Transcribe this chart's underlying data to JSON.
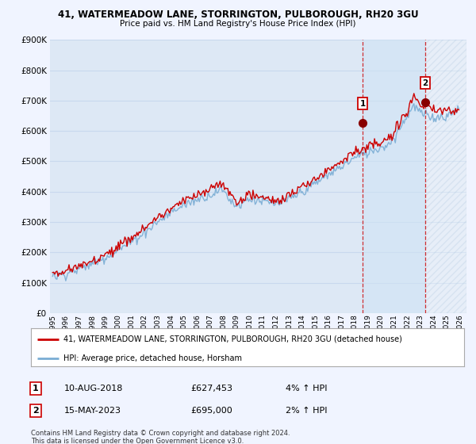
{
  "title1": "41, WATERMEADOW LANE, STORRINGTON, PULBOROUGH, RH20 3GU",
  "title2": "Price paid vs. HM Land Registry's House Price Index (HPI)",
  "ylabel_ticks": [
    "£0",
    "£100K",
    "£200K",
    "£300K",
    "£400K",
    "£500K",
    "£600K",
    "£700K",
    "£800K",
    "£900K"
  ],
  "ytick_values": [
    0,
    100000,
    200000,
    300000,
    400000,
    500000,
    600000,
    700000,
    800000,
    900000
  ],
  "bg_color": "#f0f4ff",
  "plot_bg": "#dde8f5",
  "grid_color": "#c8d8ee",
  "hpi_color": "#7aadd4",
  "price_color": "#cc0000",
  "shade_color": "#ccddf0",
  "marker1_year": 2018.6,
  "marker1_price": 627453,
  "marker2_year": 2023.37,
  "marker2_price": 695000,
  "legend_label1": "41, WATERMEADOW LANE, STORRINGTON, PULBOROUGH, RH20 3GU (detached house)",
  "legend_label2": "HPI: Average price, detached house, Horsham",
  "note1_date": "10-AUG-2018",
  "note1_price": "£627,453",
  "note1_info": "4% ↑ HPI",
  "note2_date": "15-MAY-2023",
  "note2_price": "£695,000",
  "note2_info": "2% ↑ HPI",
  "footer": "Contains HM Land Registry data © Crown copyright and database right 2024.\nThis data is licensed under the Open Government Licence v3.0."
}
